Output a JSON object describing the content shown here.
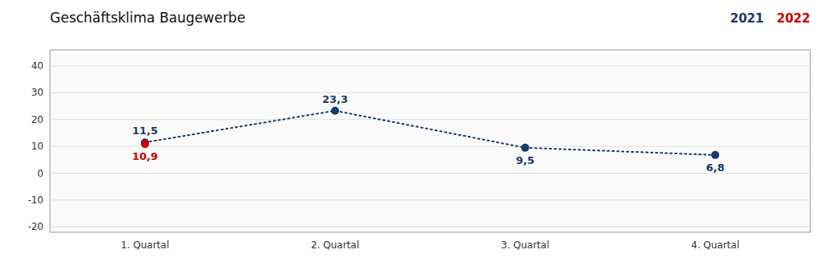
{
  "chart_data": {
    "type": "line",
    "title": "Geschäftsklima Baugewerbe",
    "categories": [
      "1. Quartal",
      "2. Quartal",
      "3. Quartal",
      "4. Quartal"
    ],
    "series": [
      {
        "name": "2021",
        "color": "#1a3a6b",
        "line_style": "dotted",
        "marker": "o",
        "values": [
          11.5,
          23.3,
          9.5,
          6.8
        ],
        "value_labels": [
          "11,5",
          "23,3",
          "9,5",
          "6,8"
        ]
      },
      {
        "name": "2022",
        "color": "#cc0000",
        "line_style": "none",
        "marker": "o",
        "values": [
          10.9,
          null,
          null,
          null
        ],
        "value_labels": [
          "10,9",
          null,
          null,
          null
        ]
      }
    ],
    "ylim": [
      -22,
      46
    ],
    "yticks": [
      -20,
      -10,
      0,
      10,
      20,
      30,
      40
    ],
    "grid": true,
    "legend": "upper right",
    "data_labels": true
  }
}
